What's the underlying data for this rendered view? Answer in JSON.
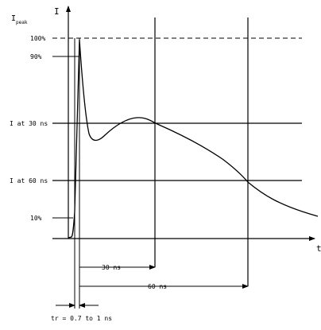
{
  "labels": {
    "y_axis": "I",
    "ipeak_main": "I",
    "ipeak_sub": "peak",
    "p100": "100%",
    "p90": "90%",
    "i30": "I at 30 ns",
    "i60": "I at 60 ns",
    "p10": "10%",
    "x_axis": "t",
    "t30": "30 ns",
    "t60": "60 ns",
    "tr": "tr = 0.7 to 1 ns"
  },
  "colors": {
    "ink": "#000000",
    "background": "#ffffff"
  }
}
